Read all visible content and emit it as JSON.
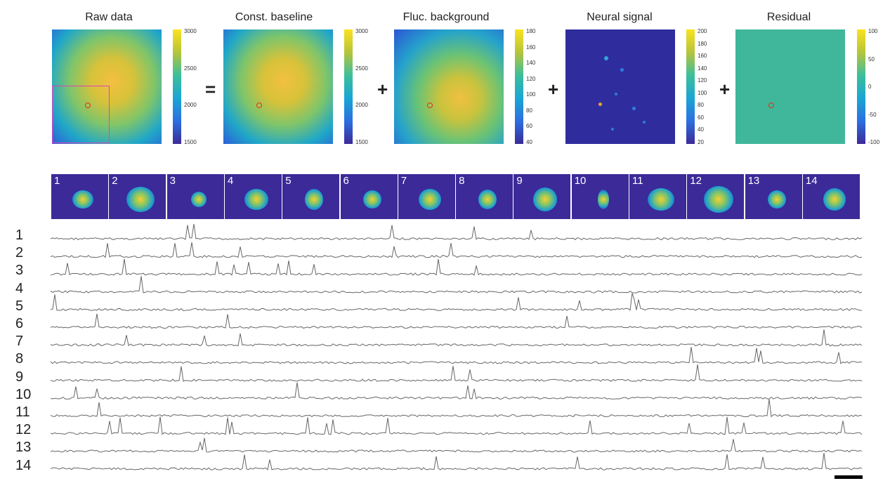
{
  "panels": [
    {
      "title": "Raw data",
      "ticks": [
        "3000",
        "2500",
        "2000",
        "1500"
      ]
    },
    {
      "title": "Const. baseline",
      "ticks": [
        "3000",
        "2500",
        "2000",
        "1500"
      ]
    },
    {
      "title": "Fluc. background",
      "ticks": [
        "180",
        "160",
        "140",
        "120",
        "100",
        "80",
        "60",
        "40"
      ]
    },
    {
      "title": "Neural signal",
      "ticks": [
        "200",
        "180",
        "160",
        "140",
        "120",
        "100",
        "80",
        "60",
        "40",
        "20"
      ]
    },
    {
      "title": "Residual",
      "ticks": [
        "100",
        "50",
        "0",
        "-50",
        "-100"
      ]
    }
  ],
  "operators": [
    "=",
    "+",
    "+",
    "+"
  ],
  "neurons": [
    "1",
    "2",
    "3",
    "4",
    "5",
    "6",
    "7",
    "8",
    "9",
    "10",
    "11",
    "12",
    "13",
    "14"
  ],
  "colors": {
    "background_dark": "#3b2a98",
    "trace": "#666666",
    "roi": "#e0301e",
    "box": "#e040c0"
  }
}
